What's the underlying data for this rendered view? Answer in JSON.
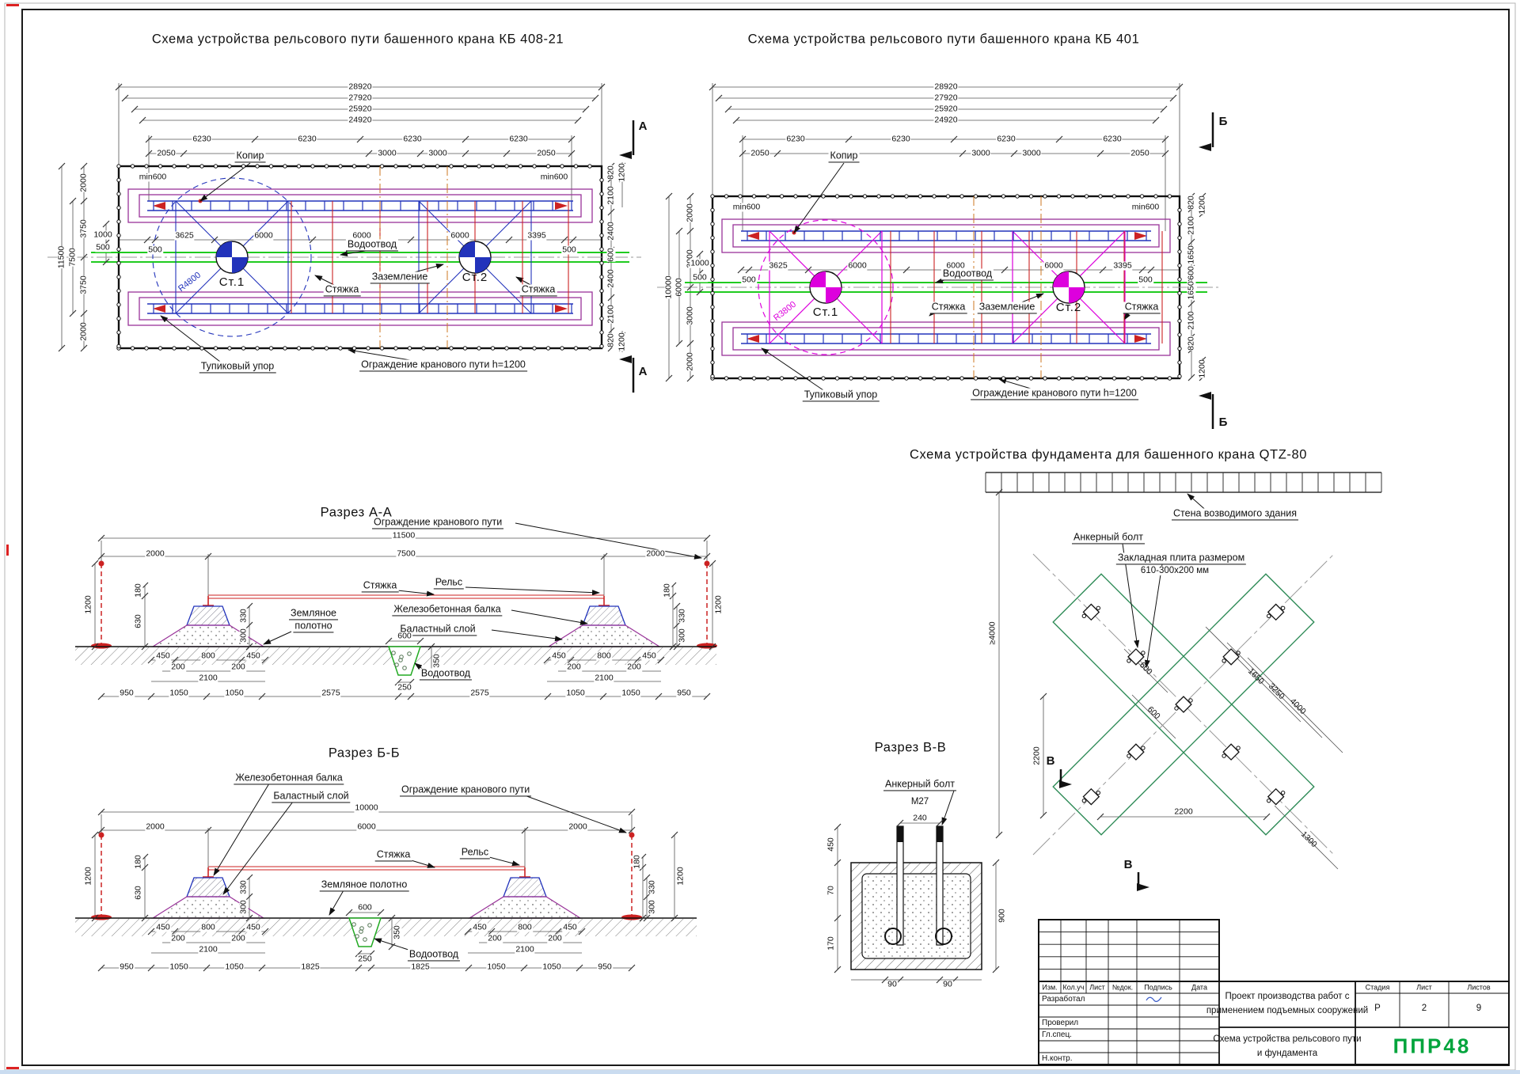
{
  "colors": {
    "rail": "#2233bb",
    "ballast": "#993399",
    "drain": "#00c400",
    "tie": "#cc2222",
    "cross_kb408": "#2233bb",
    "cross_kb401": "#dd00dd",
    "qtz_outline": "#2e8b57",
    "logo": "#00a43c"
  },
  "plan_kb408": {
    "title": "Схема устройства рельсового пути башенного крана КБ 408-21",
    "dims_overall": [
      "28920",
      "27920",
      "25920",
      "24920"
    ],
    "dims_6230": [
      "6230",
      "6230",
      "6230",
      "6230"
    ],
    "dims_sub": [
      "2050",
      "3000",
      "3000",
      "2050"
    ],
    "kopir": "Копир",
    "min600_l": "min600",
    "min600_r": "min600",
    "dim_11500": "11500",
    "dim_7500": "7500",
    "dims_left": [
      "2000",
      "3750",
      "3750",
      "2000"
    ],
    "dim_1000": "1000",
    "dim_500a": "500",
    "dim_500b": "500",
    "dim_500c": "500",
    "dims_mid": [
      "3625",
      "6000",
      "6000",
      "6000",
      "3395"
    ],
    "st1": "Ст.1",
    "st2": "Ст.2",
    "radius": "R4800",
    "vodootvod": "Водоотвод",
    "zazemlenie": "Заземление",
    "styazhka_a": "Стяжка",
    "styazhka_b": "Стяжка",
    "tupik": "Тупиковый упор",
    "fence": "Ограждение кранового пути h=1200",
    "dims_right": [
      "820",
      "2100",
      "2400",
      "600",
      "2400",
      "2100",
      "820"
    ],
    "dim_1200t": "1200",
    "dim_1200b": "1200",
    "mark": "А",
    "mark2": "А"
  },
  "plan_kb401": {
    "title": "Схема устройства рельсового пути башенного крана КБ 401",
    "dims_overall": [
      "28920",
      "27920",
      "25920",
      "24920"
    ],
    "dims_6230": [
      "6230",
      "6230",
      "6230",
      "6230"
    ],
    "dims_sub": [
      "2050",
      "3000",
      "3000",
      "2050"
    ],
    "kopir": "Копир",
    "min600_l": "min600",
    "min600_r": "min600",
    "dim_10000": "10000",
    "dim_6000": "6000",
    "dims_left": [
      "2000",
      "3000",
      "3000",
      "2000"
    ],
    "dim_1000": "1000",
    "dim_500a": "500",
    "dim_500b": "500",
    "dim_500c": "500",
    "dims_mid": [
      "3625",
      "6000",
      "6000",
      "6000",
      "3395"
    ],
    "st1": "Ст.1",
    "st2": "Ст.2",
    "radius": "R3800",
    "vodootvod": "Водоотвод",
    "zazemlenie": "Заземление",
    "styazhka_a": "Стяжка",
    "styazhka_b": "Стяжка",
    "tupik": "Тупиковый упор",
    "fence": "Ограждение кранового пути h=1200",
    "dims_right": [
      "820",
      "2100",
      "1650",
      "600",
      "1650",
      "2100",
      "820"
    ],
    "dim_1200t": "1200",
    "dim_1200b": "1200",
    "mark": "Б",
    "mark2": "Б"
  },
  "qtz": {
    "title": "Схема устройства фундамента для башенного крана QTZ-80",
    "wall": "Стена возводимого здания",
    "anchor": "Анкерный болт",
    "plate1": "Закладная плита размером",
    "plate2": "610-300х200 мм",
    "dim_ge4000": "≥4000",
    "dim_2200v": "2200",
    "dim_600a": "600",
    "dim_600b": "600",
    "dim_1650": "1650",
    "dim_3250": "3250",
    "dim_4000": "4000",
    "dim_2200h": "2200",
    "dim_1300": "1300",
    "mark": "В",
    "mark2": "В"
  },
  "sec_aa": {
    "title": "Разрез А-А",
    "fence": "Ограждение кранового пути",
    "dim_11500": "11500",
    "dim_2000l": "2000",
    "dim_7500": "7500",
    "dim_2000r": "2000",
    "styazhka": "Стяжка",
    "rels": "Рельс",
    "zeml1": "Земляное",
    "zeml2": "полотно",
    "balka": "Железобетонная балка",
    "balast": "Баластный слой",
    "vodootvod": "Водоотвод",
    "dim_1200l": "1200",
    "dim_180l": "180",
    "dim_630": "630",
    "dim_330l": "330",
    "dim_300l": "300",
    "dim_180r": "180",
    "dim_330r": "330",
    "dim_300r": "300",
    "dim_1200r": "1200",
    "dim_600": "600",
    "dim_350": "350",
    "dim_250": "250",
    "row1": [
      "450",
      "800",
      "450",
      "450",
      "800",
      "450"
    ],
    "row2": [
      "200",
      "200",
      "200",
      "200"
    ],
    "row3": [
      "2100",
      "2100"
    ],
    "row4": [
      "950",
      "1050",
      "1050",
      "2575",
      "2575",
      "1050",
      "1050",
      "950"
    ]
  },
  "sec_bb": {
    "title": "Разрез Б-Б",
    "fence": "Ограждение кранового пути",
    "balka": "Железобетонная балка",
    "balast": "Баластный слой",
    "dim_10000": "10000",
    "dim_2000l": "2000",
    "dim_6000": "6000",
    "dim_2000r": "2000",
    "styazhka": "Стяжка",
    "rels": "Рельс",
    "zeml": "Земляное полотно",
    "vodootvod": "Водоотвод",
    "dim_1200l": "1200",
    "dim_180l": "180",
    "dim_630": "630",
    "dim_330l": "330",
    "dim_300l": "300",
    "dim_180r": "180",
    "dim_330r": "330",
    "dim_300r": "300",
    "dim_1200r": "1200",
    "dim_600": "600",
    "dim_350": "350",
    "dim_250": "250",
    "row1": [
      "450",
      "800",
      "450",
      "450",
      "800",
      "450"
    ],
    "row2": [
      "200",
      "200",
      "200",
      "200"
    ],
    "row3": [
      "2100",
      "2100"
    ],
    "row4": [
      "950",
      "1050",
      "1050",
      "1825",
      "1825",
      "1050",
      "1050",
      "950"
    ]
  },
  "sec_vv": {
    "title": "Разрез В-В",
    "anchor": "Анкерный болт",
    "m27": "М27",
    "dim_240": "240",
    "dim_450": "450",
    "dim_70": "70",
    "dim_170": "170",
    "dim_90a": "90",
    "dim_90b": "90",
    "dim_900": "900"
  },
  "stamp": {
    "cols": [
      "Изм.",
      "Кол.уч",
      "Лист",
      "№док.",
      "Подпись",
      "Дата"
    ],
    "rows": [
      "Разработал",
      "",
      "Проверил",
      "Гл.спец.",
      "",
      "Н.контр."
    ],
    "project1": "Проект производства работ с",
    "project2": "применением подъемных сооружений",
    "doc1": "Схема устройства рельсового пути",
    "doc2": "и фундамента",
    "stage_h": [
      "Стадия",
      "Лист",
      "Листов"
    ],
    "stage_v": [
      "Р",
      "2",
      "9"
    ],
    "logo": "ППР48"
  }
}
